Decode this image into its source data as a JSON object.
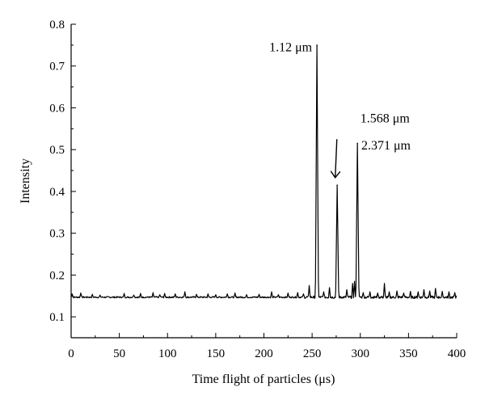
{
  "chart_data": {
    "type": "line",
    "title": "",
    "xlabel": "Time flight of particles (μs)",
    "ylabel": "Intensity",
    "xlim": [
      0,
      400
    ],
    "ylim": [
      0.05,
      0.8
    ],
    "xticks": [
      0,
      50,
      100,
      150,
      200,
      250,
      300,
      350,
      400
    ],
    "yticks": [
      0.1,
      0.2,
      0.3,
      0.4,
      0.5,
      0.6,
      0.7,
      0.8
    ],
    "xtick_labels": [
      "0",
      "50",
      "100",
      "150",
      "200",
      "250",
      "300",
      "350",
      "400"
    ],
    "ytick_labels": [
      "0.1",
      "0.2",
      "0.3",
      "0.4",
      "0.5",
      "0.6",
      "0.7",
      "0.8"
    ],
    "grid": false,
    "legend": "none",
    "baseline": 0.147,
    "peaks": [
      {
        "x": 255,
        "y": 0.75
      },
      {
        "x": 276,
        "y": 0.415
      },
      {
        "x": 297,
        "y": 0.515
      }
    ],
    "minor_spikes": [
      {
        "x": 1,
        "y": 0.155
      },
      {
        "x": 10,
        "y": 0.157
      },
      {
        "x": 22,
        "y": 0.154
      },
      {
        "x": 30,
        "y": 0.152
      },
      {
        "x": 55,
        "y": 0.156
      },
      {
        "x": 65,
        "y": 0.152
      },
      {
        "x": 72,
        "y": 0.156
      },
      {
        "x": 85,
        "y": 0.158
      },
      {
        "x": 92,
        "y": 0.153
      },
      {
        "x": 97,
        "y": 0.156
      },
      {
        "x": 108,
        "y": 0.155
      },
      {
        "x": 118,
        "y": 0.16
      },
      {
        "x": 130,
        "y": 0.154
      },
      {
        "x": 142,
        "y": 0.155
      },
      {
        "x": 150,
        "y": 0.153
      },
      {
        "x": 162,
        "y": 0.155
      },
      {
        "x": 170,
        "y": 0.157
      },
      {
        "x": 182,
        "y": 0.153
      },
      {
        "x": 195,
        "y": 0.154
      },
      {
        "x": 208,
        "y": 0.16
      },
      {
        "x": 215,
        "y": 0.153
      },
      {
        "x": 225,
        "y": 0.157
      },
      {
        "x": 235,
        "y": 0.158
      },
      {
        "x": 241,
        "y": 0.155
      },
      {
        "x": 247,
        "y": 0.175
      },
      {
        "x": 262,
        "y": 0.16
      },
      {
        "x": 268,
        "y": 0.17
      },
      {
        "x": 286,
        "y": 0.165
      },
      {
        "x": 292,
        "y": 0.18
      },
      {
        "x": 294,
        "y": 0.185
      },
      {
        "x": 303,
        "y": 0.158
      },
      {
        "x": 310,
        "y": 0.16
      },
      {
        "x": 318,
        "y": 0.157
      },
      {
        "x": 325,
        "y": 0.18
      },
      {
        "x": 330,
        "y": 0.16
      },
      {
        "x": 338,
        "y": 0.162
      },
      {
        "x": 345,
        "y": 0.157
      },
      {
        "x": 352,
        "y": 0.161
      },
      {
        "x": 360,
        "y": 0.16
      },
      {
        "x": 366,
        "y": 0.165
      },
      {
        "x": 372,
        "y": 0.162
      },
      {
        "x": 378,
        "y": 0.168
      },
      {
        "x": 385,
        "y": 0.161
      },
      {
        "x": 392,
        "y": 0.16
      },
      {
        "x": 398,
        "y": 0.158
      }
    ],
    "annotations": [
      {
        "text": "1.12 μm",
        "x": 250,
        "y": 0.735
      },
      {
        "text": "1.568 μm",
        "x": 300,
        "y": 0.565
      },
      {
        "text": "2.371 μm",
        "x": 301,
        "y": 0.5
      }
    ],
    "arrow": {
      "from": [
        274,
        0.525
      ],
      "to": [
        274,
        0.435
      ]
    }
  }
}
